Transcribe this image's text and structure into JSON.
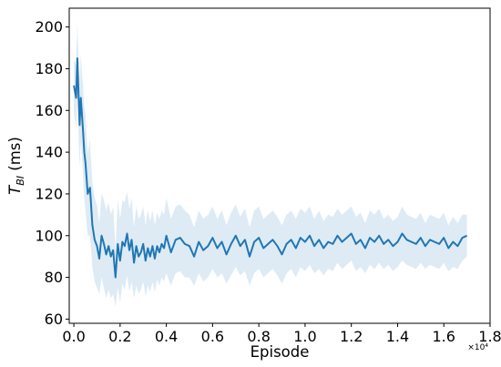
{
  "chart_data": {
    "type": "line",
    "title": "",
    "xlabel": "Episode",
    "ylabel_main": "T",
    "ylabel_sub": "BI",
    "ylabel_unit": " (ms)",
    "x_multiplier_label": "×10⁴",
    "x_tick_labels": [
      "0.0",
      "0.2",
      "0.4",
      "0.6",
      "0.8",
      "1.0",
      "1.2",
      "1.4",
      "1.6",
      "1.8"
    ],
    "y_tick_labels": [
      "60",
      "80",
      "100",
      "120",
      "140",
      "160",
      "180",
      "200"
    ],
    "xlim": [
      -0.02,
      1.8
    ],
    "ylim": [
      58,
      209
    ],
    "grid": false,
    "legend": "none",
    "colors": {
      "line": "#1f77b4",
      "band": "#1f77b4",
      "band_opacity": 0.15
    },
    "series": [
      {
        "x": [
          0.0,
          0.01,
          0.015,
          0.02,
          0.025,
          0.03,
          0.035,
          0.04,
          0.045,
          0.05,
          0.06,
          0.07,
          0.08,
          0.09,
          0.1,
          0.11,
          0.12,
          0.13,
          0.14,
          0.15,
          0.16,
          0.17,
          0.18,
          0.19,
          0.2,
          0.21,
          0.22,
          0.23,
          0.24,
          0.25,
          0.26,
          0.27,
          0.28,
          0.29,
          0.3,
          0.31,
          0.32,
          0.33,
          0.34,
          0.35,
          0.36,
          0.37,
          0.38,
          0.39,
          0.4,
          0.42,
          0.44,
          0.46,
          0.48,
          0.5,
          0.52,
          0.54,
          0.56,
          0.58,
          0.6,
          0.62,
          0.64,
          0.66,
          0.68,
          0.7,
          0.72,
          0.74,
          0.76,
          0.78,
          0.8,
          0.82,
          0.84,
          0.86,
          0.88,
          0.9,
          0.92,
          0.94,
          0.96,
          0.98,
          1.0,
          1.02,
          1.04,
          1.06,
          1.08,
          1.1,
          1.12,
          1.14,
          1.16,
          1.18,
          1.2,
          1.22,
          1.24,
          1.26,
          1.28,
          1.3,
          1.32,
          1.34,
          1.36,
          1.38,
          1.4,
          1.42,
          1.44,
          1.46,
          1.48,
          1.5,
          1.52,
          1.54,
          1.56,
          1.58,
          1.6,
          1.62,
          1.64,
          1.66,
          1.68,
          1.7
        ],
        "y": [
          172,
          166,
          185,
          168,
          153,
          166,
          158,
          150,
          140,
          135,
          120,
          123,
          105,
          98,
          95,
          89,
          100,
          96,
          91,
          95,
          90,
          93,
          80,
          96,
          88,
          97,
          95,
          101,
          93,
          98,
          87,
          95,
          90,
          92,
          96,
          88,
          94,
          90,
          95,
          89,
          95,
          92,
          96,
          94,
          100,
          92,
          98,
          99,
          96,
          95,
          90,
          97,
          93,
          95,
          99,
          94,
          97,
          91,
          96,
          100,
          95,
          98,
          90,
          97,
          99,
          94,
          96,
          98,
          95,
          91,
          96,
          98,
          94,
          99,
          97,
          100,
          95,
          98,
          94,
          97,
          96,
          100,
          97,
          99,
          101,
          96,
          98,
          94,
          99,
          97,
          100,
          96,
          98,
          95,
          97,
          101,
          98,
          97,
          96,
          99,
          95,
          98,
          97,
          96,
          99,
          94,
          97,
          95,
          99,
          100
        ],
        "lower": [
          160,
          150,
          168,
          150,
          133,
          145,
          138,
          128,
          118,
          112,
          100,
          100,
          85,
          78,
          75,
          72,
          80,
          75,
          70,
          74,
          70,
          72,
          66,
          75,
          68,
          77,
          74,
          81,
          73,
          78,
          70,
          76,
          72,
          74,
          78,
          71,
          76,
          73,
          78,
          73,
          79,
          76,
          80,
          78,
          82,
          76,
          82,
          83,
          80,
          80,
          76,
          82,
          78,
          80,
          84,
          80,
          82,
          77,
          81,
          85,
          81,
          83,
          76,
          82,
          84,
          80,
          82,
          84,
          81,
          77,
          82,
          84,
          80,
          85,
          83,
          86,
          82,
          84,
          81,
          84,
          83,
          87,
          84,
          86,
          88,
          83,
          85,
          82,
          86,
          84,
          87,
          84,
          86,
          83,
          85,
          88,
          86,
          85,
          84,
          87,
          84,
          86,
          85,
          84,
          87,
          83,
          85,
          84,
          88,
          90
        ],
        "upper": [
          184,
          182,
          202,
          186,
          173,
          187,
          178,
          172,
          162,
          158,
          140,
          146,
          125,
          118,
          115,
          106,
          120,
          117,
          112,
          116,
          110,
          114,
          94,
          117,
          108,
          117,
          116,
          121,
          113,
          118,
          104,
          114,
          108,
          110,
          114,
          105,
          112,
          107,
          112,
          105,
          111,
          108,
          112,
          110,
          118,
          108,
          114,
          115,
          112,
          110,
          104,
          112,
          108,
          110,
          114,
          108,
          112,
          105,
          111,
          115,
          109,
          113,
          104,
          112,
          114,
          108,
          110,
          112,
          109,
          105,
          110,
          112,
          108,
          113,
          111,
          114,
          108,
          112,
          107,
          110,
          109,
          113,
          110,
          112,
          114,
          109,
          111,
          106,
          112,
          110,
          113,
          108,
          110,
          107,
          109,
          114,
          110,
          109,
          108,
          111,
          106,
          110,
          109,
          108,
          111,
          105,
          109,
          106,
          110,
          110
        ]
      }
    ]
  }
}
